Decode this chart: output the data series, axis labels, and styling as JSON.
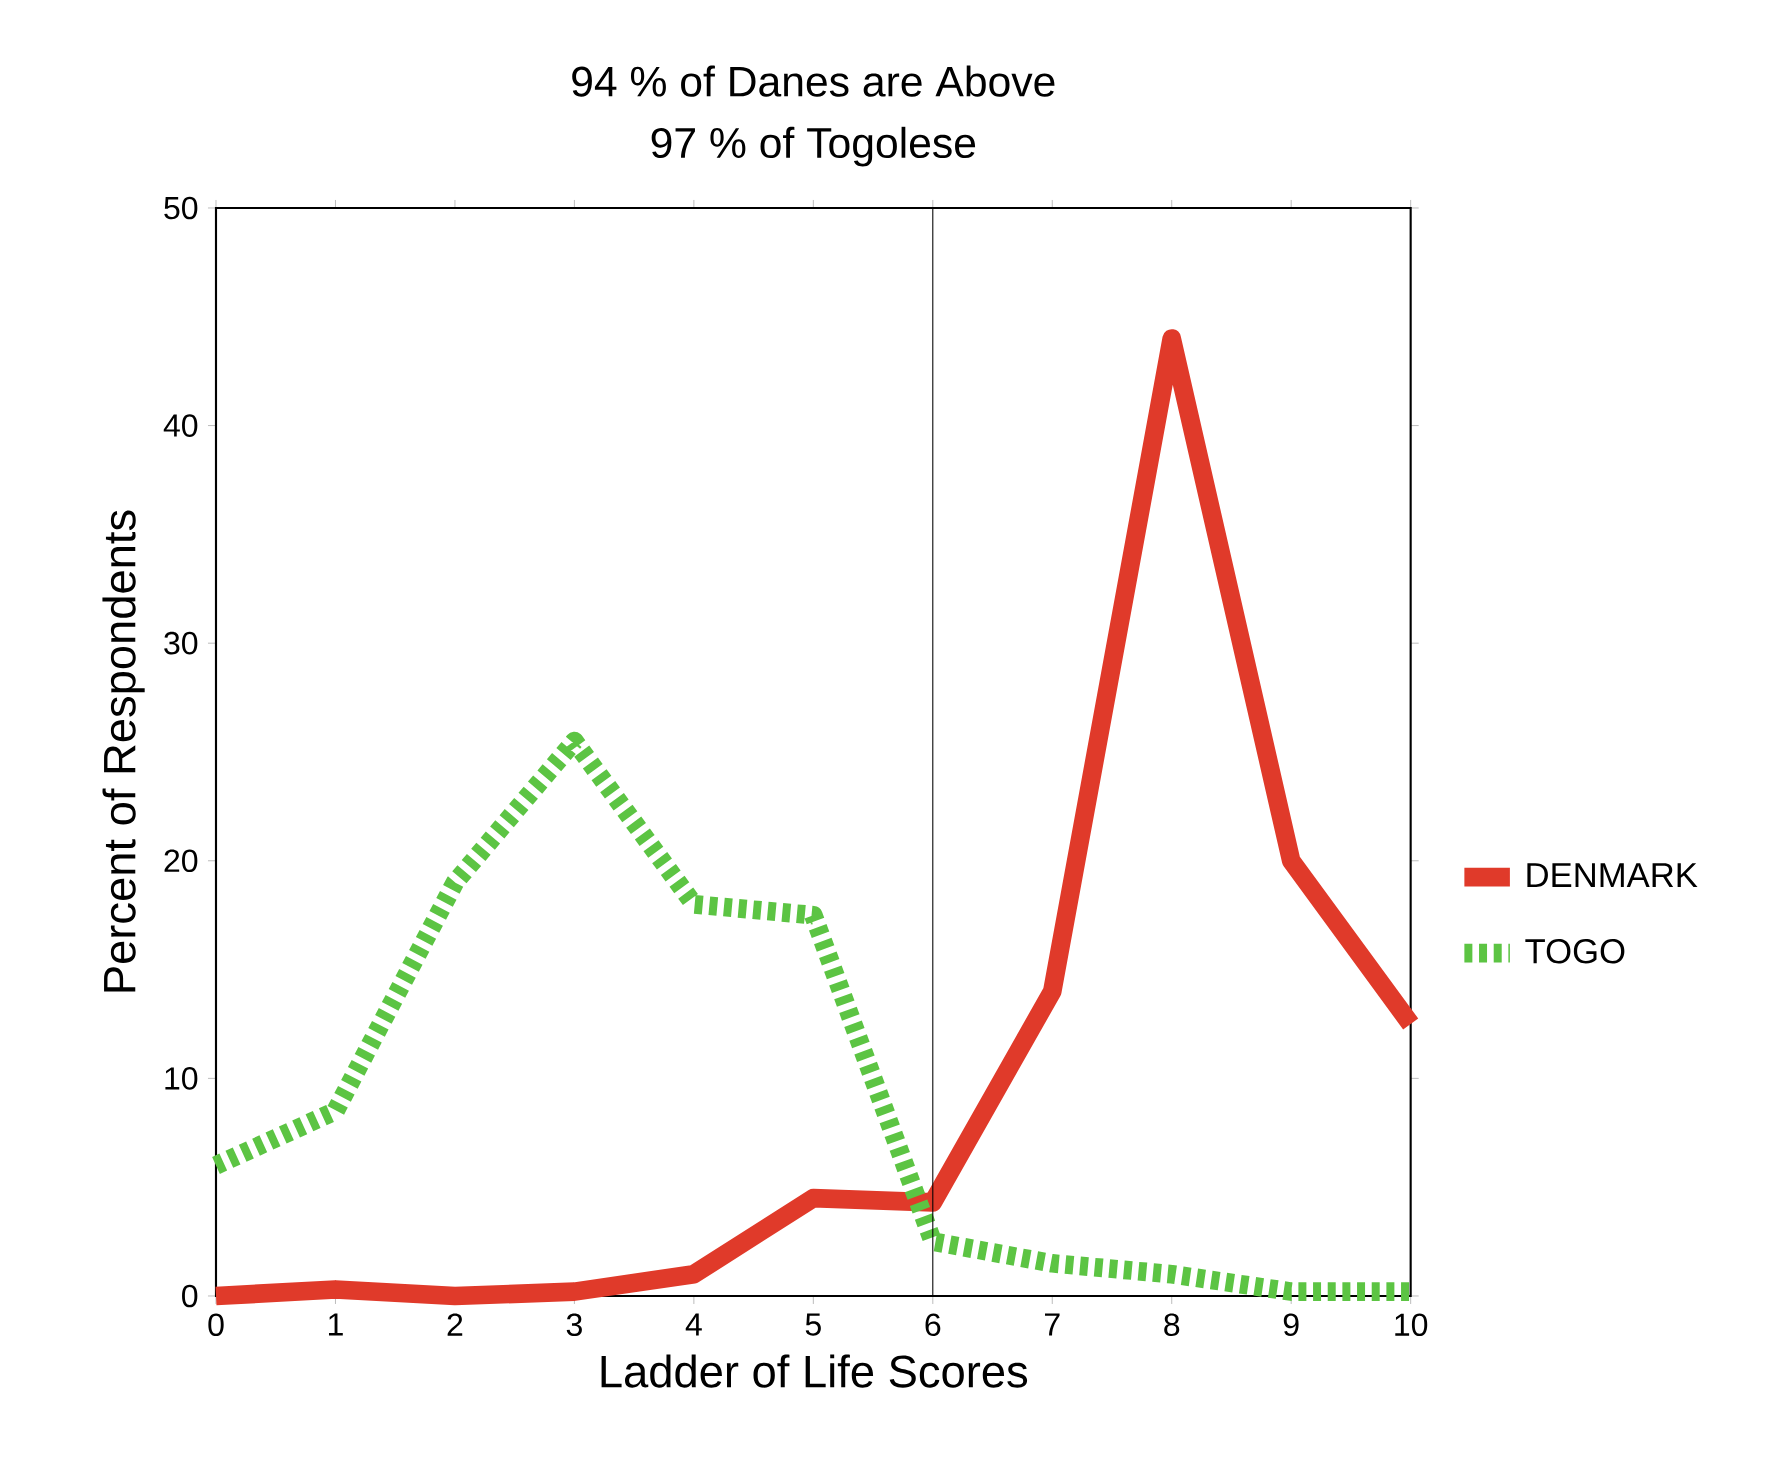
{
  "chart_data": {
    "type": "line",
    "title": "94 % of Danes are Above",
    "subtitle": "97 % of Togolese",
    "xlabel": "Ladder of Life Scores",
    "ylabel": "Percent of Respondents",
    "x": [
      0,
      1,
      2,
      3,
      4,
      5,
      6,
      7,
      8,
      9,
      10
    ],
    "series": [
      {
        "name": "DENMARK",
        "color": "#e03a2a",
        "line_style": "solid",
        "values": [
          0,
          0.3,
          0,
          0.2,
          1,
          4.5,
          4.3,
          14,
          44,
          20,
          12.5
        ]
      },
      {
        "name": "TOGO",
        "color": "#5cc443",
        "line_style": "dotted",
        "values": [
          6,
          8.5,
          19,
          25.5,
          18,
          17.5,
          2.5,
          1.5,
          1,
          0.2,
          0.2
        ]
      }
    ],
    "xlim": [
      0,
      10
    ],
    "ylim": [
      0,
      50
    ],
    "xticks": [
      0,
      1,
      2,
      3,
      4,
      5,
      6,
      7,
      8,
      9,
      10
    ],
    "yticks": [
      0,
      10,
      20,
      30,
      40,
      50
    ],
    "ref_lines": [
      {
        "axis": "x",
        "value": 6,
        "color": "#000000"
      }
    ],
    "grid": false,
    "legend": "right",
    "marker": "none"
  }
}
